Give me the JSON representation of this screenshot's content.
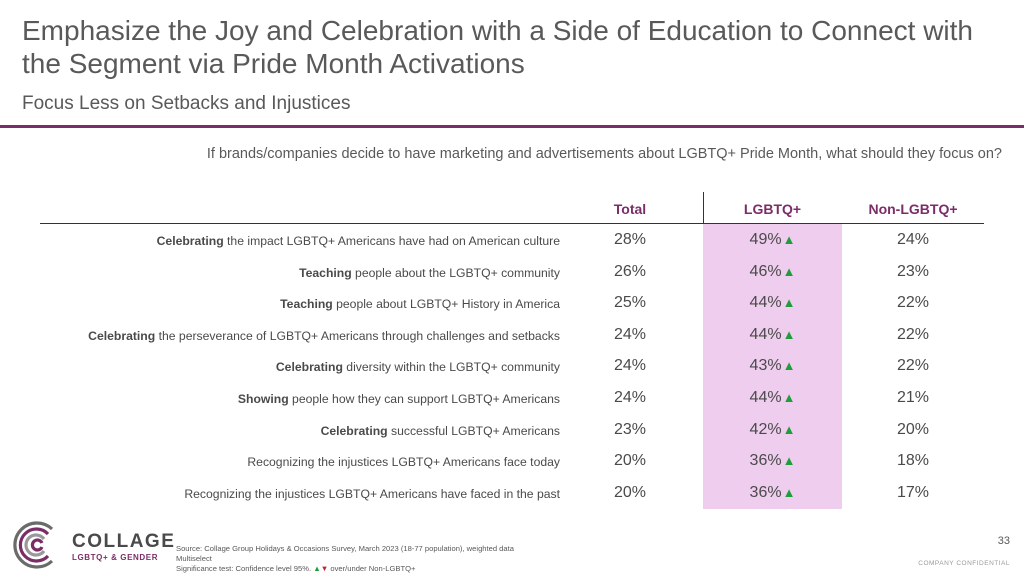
{
  "slide": {
    "title": "Emphasize the Joy and Celebration with a Side of Education to Connect with the Segment via Pride Month Activations",
    "subtitle": "Focus Less on Setbacks and Injustices",
    "question": "If brands/companies decide to have marketing and advertisements about LGBTQ+ Pride Month, what should they focus on?",
    "page_number": "33",
    "confidential": "COMPANY CONFIDENTIAL"
  },
  "table": {
    "columns": [
      "Total",
      "LGBTQ+",
      "Non-LGBTQ+"
    ],
    "rows": [
      {
        "lead": "Celebrating",
        "rest": " the impact LGBTQ+ Americans have had on American culture",
        "total": "28%",
        "lgbtq": "49%",
        "non": "24%"
      },
      {
        "lead": "Teaching",
        "rest": " people about the LGBTQ+ community",
        "total": "26%",
        "lgbtq": "46%",
        "non": "23%"
      },
      {
        "lead": "Teaching",
        "rest": " people about LGBTQ+ History in America",
        "total": "25%",
        "lgbtq": "44%",
        "non": "22%"
      },
      {
        "lead": "Celebrating",
        "rest": " the perseverance of LGBTQ+ Americans through challenges and setbacks",
        "total": "24%",
        "lgbtq": "44%",
        "non": "22%"
      },
      {
        "lead": "Celebrating",
        "rest": " diversity within the LGBTQ+ community",
        "total": "24%",
        "lgbtq": "43%",
        "non": "22%"
      },
      {
        "lead": "Showing",
        "rest": " people how they can support LGBTQ+ Americans",
        "total": "24%",
        "lgbtq": "44%",
        "non": "21%"
      },
      {
        "lead": "Celebrating",
        "rest": " successful LGBTQ+ Americans",
        "total": "23%",
        "lgbtq": "42%",
        "non": "20%"
      },
      {
        "lead": "",
        "rest": "Recognizing the injustices LGBTQ+ Americans face today",
        "total": "20%",
        "lgbtq": "36%",
        "non": "18%"
      },
      {
        "lead": "",
        "rest": "Recognizing the injustices LGBTQ+ Americans have faced in the past",
        "total": "20%",
        "lgbtq": "36%",
        "non": "17%"
      }
    ],
    "significance_arrow": "▲",
    "colors": {
      "accent": "#7b2d68",
      "highlight": "#efcdee",
      "up": "#1e9e3b",
      "down": "#c0262d"
    }
  },
  "logo": {
    "word": "COLLAGE",
    "sub": "LGBTQ+ & GENDER"
  },
  "footer": {
    "source": "Source: Collage Group Holidays & Occasions Survey, March 2023 (18-77 population), weighted data",
    "multiselect": "Multiselect",
    "sig_prefix": "Significance test: Confidence level 95%. ",
    "sig_up": "▲",
    "sig_down": "▼",
    "sig_suffix": " over/under Non-LGBTQ+"
  }
}
